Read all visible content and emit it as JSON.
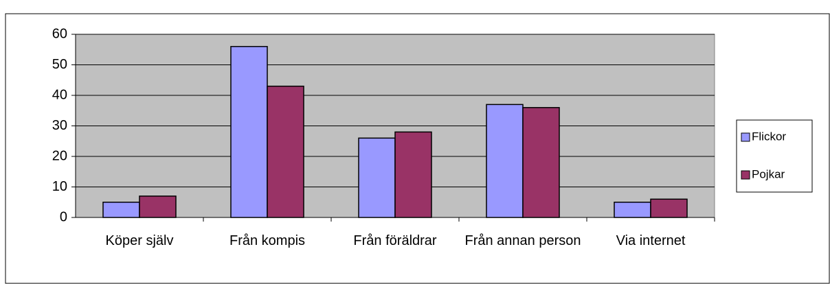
{
  "chart_data": {
    "type": "bar",
    "categories": [
      "Köper själv",
      "Från kompis",
      "Från föräldrar",
      "Från annan person",
      "Via internet"
    ],
    "series": [
      {
        "name": "Flickor",
        "color": "#9999ff",
        "values": [
          5,
          56,
          26,
          37,
          5
        ]
      },
      {
        "name": "Pojkar",
        "color": "#993366",
        "values": [
          7,
          43,
          28,
          36,
          6
        ]
      }
    ],
    "ylim": [
      0,
      60
    ],
    "yticks": [
      0,
      10,
      20,
      30,
      40,
      50,
      60
    ],
    "grid": true,
    "legend": "right"
  }
}
